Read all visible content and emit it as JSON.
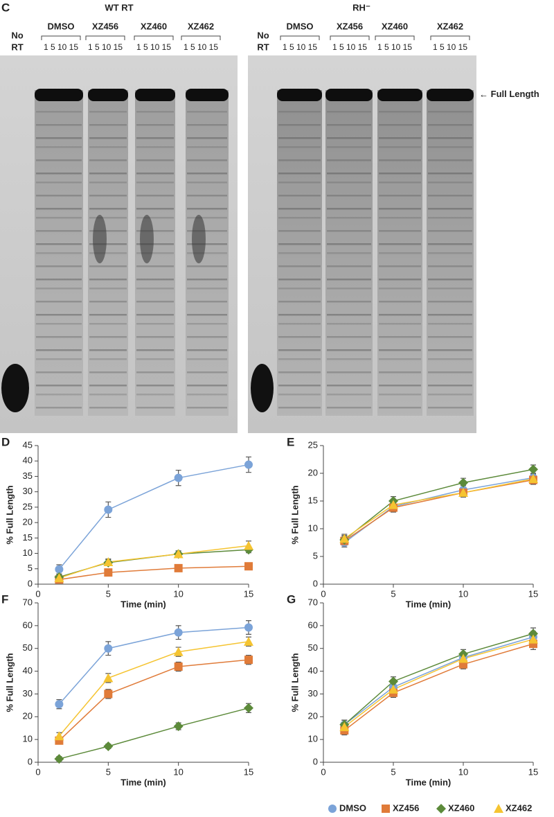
{
  "gel": {
    "label": "C",
    "marker_label": "Full Length",
    "panels": [
      {
        "title": "WT RT",
        "no_rt": [
          "No",
          "RT"
        ],
        "groups": [
          "DMSO",
          "XZ456",
          "XZ460",
          "XZ462"
        ],
        "lanes": "1 5 10 15"
      },
      {
        "title": "RH⁻",
        "no_rt": [
          "No",
          "RT"
        ],
        "groups": [
          "DMSO",
          "XZ456",
          "XZ460",
          "XZ462"
        ],
        "lanes": "1 5 10 15"
      }
    ]
  },
  "legend": [
    {
      "name": "DMSO",
      "color": "#7ba3d8",
      "marker": "circle"
    },
    {
      "name": "XZ456",
      "color": "#e07b39",
      "marker": "square"
    },
    {
      "name": "XZ460",
      "color": "#5c8a3a",
      "marker": "diamond"
    },
    {
      "name": "XZ462",
      "color": "#f5c431",
      "marker": "triangle"
    }
  ],
  "chart_data": [
    {
      "type": "line",
      "label": "D",
      "x_label": "Time (min)",
      "y_label": "% Full Length",
      "x": [
        1.5,
        5,
        10,
        15
      ],
      "xlim": [
        0,
        15
      ],
      "xticks": [
        0,
        5,
        10,
        15
      ],
      "ylim": [
        0,
        45
      ],
      "yticks": [
        0,
        5,
        10,
        15,
        20,
        25,
        30,
        35,
        40,
        45
      ],
      "series": [
        {
          "values": [
            4.8,
            24.2,
            34.5,
            38.8
          ],
          "errors": [
            1.5,
            2.5,
            2.5,
            2.5
          ]
        },
        {
          "values": [
            1.5,
            3.8,
            5.2,
            5.8
          ],
          "errors": [
            1,
            1,
            1,
            1
          ]
        },
        {
          "values": [
            2.3,
            7,
            9.8,
            11.2
          ],
          "errors": [
            1,
            1,
            1,
            1
          ]
        },
        {
          "values": [
            2,
            7.2,
            9.8,
            12.5
          ],
          "errors": [
            1,
            1,
            1,
            1.5
          ]
        }
      ]
    },
    {
      "type": "line",
      "label": "E",
      "x_label": "Time (min)",
      "y_label": "% Full Length",
      "x": [
        1.5,
        5,
        10,
        15
      ],
      "xlim": [
        0,
        15
      ],
      "xticks": [
        0,
        5,
        10,
        15
      ],
      "ylim": [
        0,
        25
      ],
      "yticks": [
        0,
        5,
        10,
        15,
        20,
        25
      ],
      "series": [
        {
          "values": [
            7.5,
            14,
            17,
            19.2
          ],
          "errors": [
            0.8,
            0.8,
            0.8,
            0.8
          ]
        },
        {
          "values": [
            7.8,
            13.8,
            16.5,
            18.8
          ],
          "errors": [
            0.8,
            0.8,
            0.8,
            0.8
          ]
        },
        {
          "values": [
            8,
            15,
            18.3,
            20.7
          ],
          "errors": [
            0.8,
            0.8,
            0.8,
            0.8
          ]
        },
        {
          "values": [
            8.2,
            14.3,
            16.5,
            19
          ],
          "errors": [
            0.8,
            0.8,
            0.8,
            0.8
          ]
        }
      ]
    },
    {
      "type": "line",
      "label": "F",
      "x_label": "Time (min)",
      "y_label": "% Full Length",
      "x": [
        1.5,
        5,
        10,
        15
      ],
      "xlim": [
        0,
        15
      ],
      "xticks": [
        0,
        5,
        10,
        15
      ],
      "ylim": [
        0,
        70
      ],
      "yticks": [
        0,
        10,
        20,
        30,
        40,
        50,
        60,
        70
      ],
      "series": [
        {
          "values": [
            25.5,
            50,
            57,
            59.2
          ],
          "errors": [
            2,
            3,
            3,
            3
          ]
        },
        {
          "values": [
            9.5,
            30,
            42,
            45
          ],
          "errors": [
            1.5,
            2,
            2,
            2
          ]
        },
        {
          "values": [
            1.5,
            7,
            15.8,
            23.8
          ],
          "errors": [
            1,
            1,
            1.5,
            2
          ]
        },
        {
          "values": [
            11.5,
            37,
            48.5,
            53
          ],
          "errors": [
            1.5,
            2,
            2,
            2
          ]
        }
      ]
    },
    {
      "type": "line",
      "label": "G",
      "x_label": "Time (min)",
      "y_label": "% Full Length",
      "x": [
        1.5,
        5,
        10,
        15
      ],
      "xlim": [
        0,
        15
      ],
      "xticks": [
        0,
        5,
        10,
        15
      ],
      "ylim": [
        0,
        70
      ],
      "yticks": [
        0,
        10,
        20,
        30,
        40,
        50,
        60,
        70
      ],
      "series": [
        {
          "values": [
            16.5,
            33,
            46,
            55
          ],
          "errors": [
            2,
            2,
            2,
            2.5
          ]
        },
        {
          "values": [
            14,
            30.5,
            43,
            52
          ],
          "errors": [
            2,
            2,
            2,
            2.5
          ]
        },
        {
          "values": [
            16.5,
            35.5,
            47.5,
            56.5
          ],
          "errors": [
            2,
            2,
            2,
            2.5
          ]
        },
        {
          "values": [
            15.5,
            32,
            45.5,
            54
          ],
          "errors": [
            2,
            2,
            2,
            2.5
          ]
        }
      ]
    }
  ]
}
